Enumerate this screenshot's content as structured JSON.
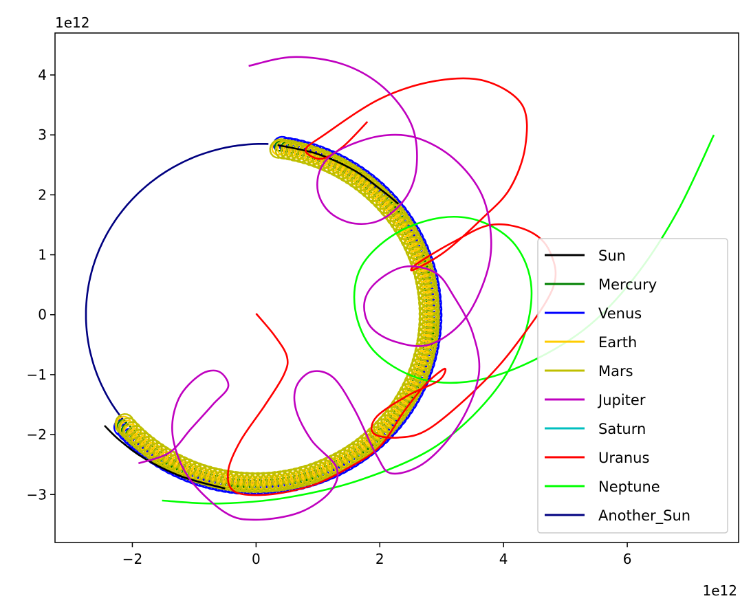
{
  "chart_data": {
    "type": "line",
    "title": "",
    "xlabel": "",
    "ylabel": "",
    "x_offset_label": "1e12",
    "y_offset_label": "1e12",
    "xlim": [
      -3.25,
      7.8
    ],
    "ylim": [
      -3.8,
      4.7
    ],
    "x_ticks": [
      -2,
      0,
      2,
      4,
      6
    ],
    "y_ticks": [
      -3,
      -2,
      -1,
      0,
      1,
      2,
      3,
      4
    ],
    "x_tick_labels": [
      "−2",
      "0",
      "2",
      "4",
      "6"
    ],
    "y_tick_labels": [
      "−3",
      "−2",
      "−1",
      "0",
      "1",
      "2",
      "3",
      "4"
    ],
    "grid": false,
    "legend_position": "lower-right",
    "series": [
      {
        "name": "Sun",
        "color": "#000000",
        "shape": "arc",
        "cx": 0,
        "cy": 0,
        "r": 2.85,
        "a_start": 45,
        "a_end": 80,
        "points": [
          [
            0.35,
            2.83
          ],
          [
            1.0,
            2.68
          ],
          [
            1.6,
            2.4
          ],
          [
            2.05,
            2.06
          ],
          [
            2.3,
            1.85
          ]
        ],
        "points2": [
          [
            -2.45,
            -1.85
          ],
          [
            -2.2,
            -2.1
          ],
          [
            -1.8,
            -2.4
          ],
          [
            -1.2,
            -2.7
          ],
          [
            -0.5,
            -2.9
          ]
        ]
      },
      {
        "name": "Mercury",
        "color": "#008000",
        "shape": "loops",
        "cx": 0,
        "cy": 0,
        "r": 2.85,
        "a_start": -140,
        "a_end": 83,
        "loop_r": 0.09,
        "loop_n": 110
      },
      {
        "name": "Venus",
        "color": "#0000ff",
        "shape": "loops",
        "cx": 0,
        "cy": 0,
        "r": 2.88,
        "a_start": -140,
        "a_end": 83,
        "loop_r": 0.12,
        "loop_n": 110
      },
      {
        "name": "Earth",
        "color": "#ffcc00",
        "shape": "loops",
        "cx": 0,
        "cy": 0,
        "r": 2.82,
        "a_start": -140,
        "a_end": 83,
        "loop_r": 0.13,
        "loop_n": 120
      },
      {
        "name": "Mars",
        "color": "#bfbf00",
        "shape": "loops",
        "cx": 0,
        "cy": 0,
        "r": 2.8,
        "a_start": -140,
        "a_end": 83,
        "loop_r": 0.16,
        "loop_n": 120
      },
      {
        "name": "Jupiter",
        "color": "#bf00bf",
        "shape": "path",
        "points": [
          [
            -1.9,
            -2.48
          ],
          [
            -1.4,
            -2.3
          ],
          [
            -1.05,
            -1.9
          ],
          [
            -0.7,
            -1.5
          ],
          [
            -0.45,
            -1.2
          ],
          [
            -0.6,
            -0.95
          ],
          [
            -0.9,
            -1.0
          ],
          [
            -1.25,
            -1.4
          ],
          [
            -1.35,
            -2.0
          ],
          [
            -1.1,
            -2.7
          ],
          [
            -0.5,
            -3.3
          ],
          [
            0.0,
            -3.42
          ],
          [
            0.7,
            -3.3
          ],
          [
            1.2,
            -2.95
          ],
          [
            1.3,
            -2.55
          ],
          [
            0.9,
            -2.1
          ],
          [
            0.65,
            -1.6
          ],
          [
            0.65,
            -1.2
          ],
          [
            0.9,
            -0.95
          ],
          [
            1.25,
            -1.05
          ],
          [
            1.6,
            -1.6
          ],
          [
            1.95,
            -2.35
          ],
          [
            2.2,
            -2.65
          ],
          [
            2.75,
            -2.45
          ],
          [
            3.3,
            -1.8
          ],
          [
            3.6,
            -1.0
          ],
          [
            3.5,
            -0.3
          ],
          [
            3.2,
            0.3
          ],
          [
            2.9,
            0.7
          ],
          [
            2.4,
            0.8
          ],
          [
            1.95,
            0.55
          ],
          [
            1.75,
            0.2
          ],
          [
            1.85,
            -0.2
          ],
          [
            2.25,
            -0.45
          ],
          [
            2.8,
            -0.5
          ],
          [
            3.35,
            -0.1
          ],
          [
            3.7,
            0.6
          ],
          [
            3.8,
            1.25
          ],
          [
            3.65,
            2.0
          ],
          [
            3.2,
            2.6
          ],
          [
            2.6,
            2.95
          ],
          [
            2.0,
            2.98
          ],
          [
            1.35,
            2.75
          ],
          [
            1.05,
            2.45
          ],
          [
            1.0,
            2.05
          ],
          [
            1.2,
            1.7
          ],
          [
            1.6,
            1.52
          ],
          [
            2.05,
            1.6
          ],
          [
            2.45,
            2.0
          ],
          [
            2.6,
            2.55
          ],
          [
            2.5,
            3.2
          ],
          [
            2.05,
            3.8
          ],
          [
            1.4,
            4.18
          ],
          [
            0.6,
            4.3
          ],
          [
            -0.12,
            4.15
          ]
        ]
      },
      {
        "name": "Saturn",
        "color": "#00bfbf",
        "shape": "none"
      },
      {
        "name": "Uranus",
        "color": "#ff0000",
        "shape": "path",
        "points": [
          [
            0.0,
            0.02
          ],
          [
            0.3,
            -0.35
          ],
          [
            0.5,
            -0.7
          ],
          [
            0.45,
            -1.0
          ],
          [
            0.15,
            -1.5
          ],
          [
            -0.25,
            -2.1
          ],
          [
            -0.45,
            -2.6
          ],
          [
            -0.35,
            -2.95
          ],
          [
            0.2,
            -3.0
          ],
          [
            0.9,
            -2.85
          ],
          [
            1.5,
            -2.55
          ],
          [
            2.0,
            -2.2
          ],
          [
            2.4,
            -1.6
          ],
          [
            2.75,
            -1.15
          ],
          [
            3.05,
            -0.9
          ],
          [
            2.95,
            -1.1
          ],
          [
            2.45,
            -1.35
          ],
          [
            1.95,
            -1.7
          ],
          [
            1.9,
            -1.98
          ],
          [
            2.3,
            -2.05
          ],
          [
            2.8,
            -1.9
          ],
          [
            3.6,
            -1.2
          ],
          [
            4.2,
            -0.5
          ],
          [
            4.8,
            0.45
          ],
          [
            4.75,
            1.05
          ],
          [
            4.4,
            1.4
          ],
          [
            3.8,
            1.5
          ],
          [
            3.2,
            1.22
          ],
          [
            2.6,
            0.85
          ],
          [
            2.55,
            0.75
          ],
          [
            3.05,
            1.05
          ],
          [
            3.65,
            1.6
          ],
          [
            4.1,
            2.1
          ],
          [
            4.35,
            2.8
          ],
          [
            4.3,
            3.5
          ],
          [
            3.7,
            3.9
          ],
          [
            2.9,
            3.9
          ],
          [
            2.0,
            3.6
          ],
          [
            1.1,
            3.0
          ],
          [
            0.8,
            2.75
          ],
          [
            1.05,
            2.6
          ],
          [
            1.4,
            2.8
          ],
          [
            1.8,
            3.22
          ]
        ]
      },
      {
        "name": "Neptune",
        "color": "#00ff00",
        "shape": "path",
        "points": [
          [
            -1.52,
            -3.1
          ],
          [
            -0.6,
            -3.15
          ],
          [
            0.5,
            -3.05
          ],
          [
            1.7,
            -2.75
          ],
          [
            2.9,
            -2.2
          ],
          [
            3.8,
            -1.35
          ],
          [
            4.3,
            -0.45
          ],
          [
            4.45,
            0.45
          ],
          [
            4.2,
            1.15
          ],
          [
            3.65,
            1.55
          ],
          [
            3.0,
            1.62
          ],
          [
            2.25,
            1.35
          ],
          [
            1.7,
            0.8
          ],
          [
            1.6,
            0.1
          ],
          [
            1.9,
            -0.6
          ],
          [
            2.6,
            -1.05
          ],
          [
            3.4,
            -1.12
          ],
          [
            4.3,
            -0.85
          ],
          [
            5.3,
            -0.25
          ],
          [
            6.1,
            0.6
          ],
          [
            6.8,
            1.7
          ],
          [
            7.4,
            3.0
          ]
        ]
      },
      {
        "name": "Another_Sun",
        "color": "#000080",
        "shape": "arc",
        "cx": 0.1,
        "cy": 0,
        "r": 2.85,
        "a_start": 88,
        "a_end": 220
      }
    ]
  }
}
